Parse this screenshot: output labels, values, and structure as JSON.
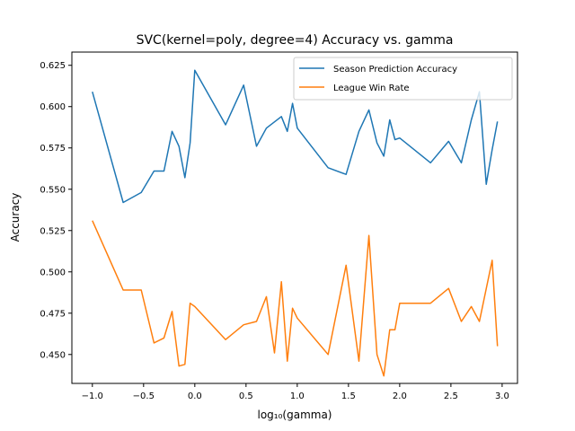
{
  "chart_data": {
    "type": "line",
    "title": "SVC(kernel=poly, degree=4) Accuracy vs. gamma",
    "xlabel": "log₁₀(gamma)",
    "ylabel": "Accuracy",
    "xlim": [
      -1.2,
      3.15
    ],
    "ylim": [
      0.4325,
      0.633
    ],
    "xticks": [
      -1.0,
      -0.5,
      0.0,
      0.5,
      1.0,
      1.5,
      2.0,
      2.5,
      3.0
    ],
    "xtick_labels": [
      "−1.0",
      "−0.5",
      "0.0",
      "0.5",
      "1.0",
      "1.5",
      "2.0",
      "2.5",
      "3.0"
    ],
    "yticks": [
      0.45,
      0.475,
      0.5,
      0.525,
      0.55,
      0.575,
      0.6,
      0.625
    ],
    "ytick_labels": [
      "0.450",
      "0.475",
      "0.500",
      "0.525",
      "0.550",
      "0.575",
      "0.600",
      "0.625"
    ],
    "grid": false,
    "legend_position": "top-right",
    "series": [
      {
        "name": "Season Prediction Accuracy",
        "color": "#1f77b4",
        "x": [
          -1.0,
          -0.699,
          -0.523,
          -0.398,
          -0.301,
          -0.222,
          -0.155,
          -0.097,
          -0.046,
          0.0,
          0.301,
          0.477,
          0.602,
          0.699,
          0.845,
          0.903,
          0.954,
          1.0,
          1.301,
          1.477,
          1.602,
          1.699,
          1.778,
          1.845,
          1.903,
          1.954,
          2.0,
          2.301,
          2.477,
          2.602,
          2.699,
          2.778,
          2.845,
          2.903,
          2.954
        ],
        "y": [
          0.609,
          0.542,
          0.548,
          0.561,
          0.561,
          0.585,
          0.576,
          0.557,
          0.578,
          0.622,
          0.589,
          0.613,
          0.576,
          0.587,
          0.594,
          0.585,
          0.602,
          0.587,
          0.563,
          0.559,
          0.585,
          0.598,
          0.578,
          0.57,
          0.592,
          0.58,
          0.581,
          0.566,
          0.579,
          0.566,
          0.592,
          0.609,
          0.553,
          0.574,
          0.591
        ]
      },
      {
        "name": "League Win Rate",
        "color": "#ff7f0e",
        "x": [
          -1.0,
          -0.699,
          -0.523,
          -0.398,
          -0.301,
          -0.222,
          -0.155,
          -0.097,
          -0.046,
          0.0,
          0.301,
          0.477,
          0.602,
          0.699,
          0.778,
          0.845,
          0.903,
          0.954,
          1.0,
          1.301,
          1.477,
          1.602,
          1.699,
          1.778,
          1.845,
          1.903,
          1.954,
          2.0,
          2.301,
          2.477,
          2.602,
          2.699,
          2.778,
          2.903,
          2.954
        ],
        "y": [
          0.531,
          0.489,
          0.489,
          0.457,
          0.46,
          0.476,
          0.443,
          0.444,
          0.481,
          0.479,
          0.459,
          0.468,
          0.47,
          0.485,
          0.451,
          0.494,
          0.446,
          0.478,
          0.472,
          0.45,
          0.504,
          0.446,
          0.522,
          0.45,
          0.437,
          0.465,
          0.465,
          0.481,
          0.481,
          0.49,
          0.47,
          0.479,
          0.47,
          0.507,
          0.455
        ]
      }
    ]
  }
}
